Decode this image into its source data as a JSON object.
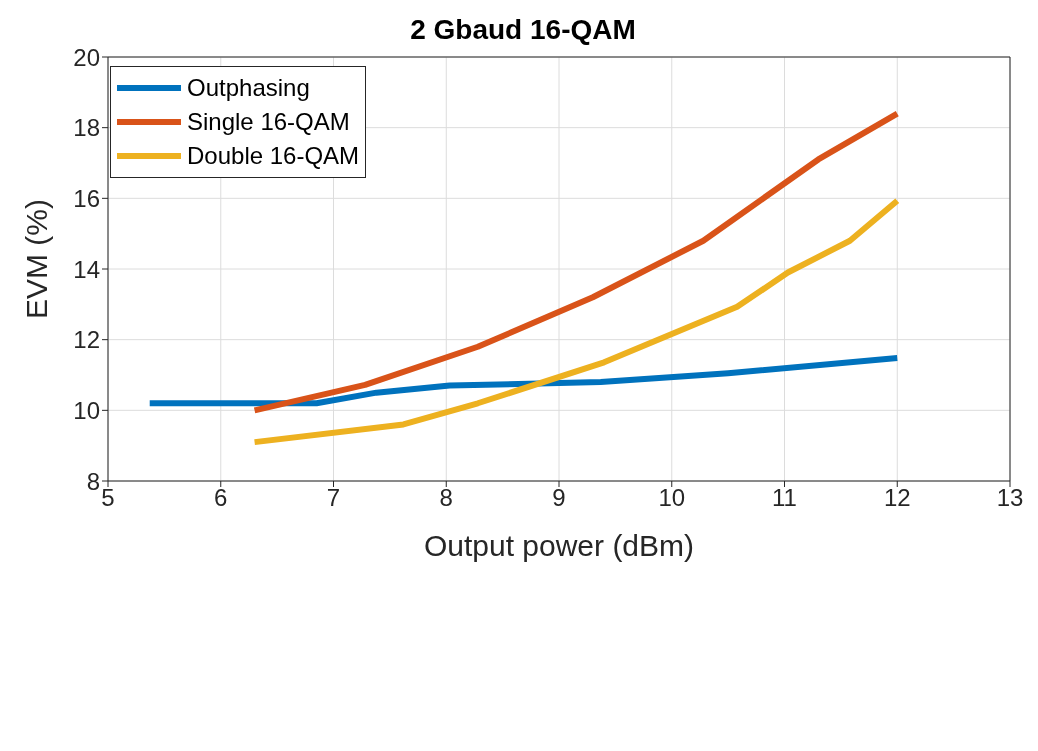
{
  "chart_data": {
    "type": "line",
    "title": "2 Gbaud 16-QAM",
    "xlabel": "Output power (dBm)",
    "ylabel": "EVM (%)",
    "xlim": [
      5,
      13
    ],
    "xticks": [
      5,
      6,
      7,
      8,
      9,
      10,
      11,
      12,
      13
    ],
    "ylim": [
      8,
      20
    ],
    "yticks": [
      8,
      10,
      12,
      14,
      16,
      18,
      20
    ],
    "grid": true,
    "legend": "top left",
    "line_style": "solid",
    "series": [
      {
        "name": "Outphasing",
        "color": "#0072bd",
        "x": [
          5.37,
          6.85,
          7.38,
          8.03,
          9.37,
          10.5,
          12
        ],
        "values": [
          10.2,
          10.2,
          10.5,
          10.7,
          10.8,
          11.05,
          11.48
        ]
      },
      {
        "name": "Single 16-QAM",
        "color": "#d95319",
        "x": [
          6.3,
          7.28,
          8.28,
          9.3,
          10.28,
          11.3,
          12
        ],
        "values": [
          10.0,
          10.72,
          11.8,
          13.2,
          14.8,
          17.1,
          18.4
        ]
      },
      {
        "name": "Double 16-QAM",
        "color": "#edb120",
        "x": [
          6.3,
          7.62,
          8.28,
          9.4,
          10.58,
          11.03,
          11.58,
          12
        ],
        "values": [
          9.1,
          9.6,
          10.2,
          11.36,
          12.93,
          13.9,
          14.8,
          15.93
        ]
      }
    ]
  }
}
